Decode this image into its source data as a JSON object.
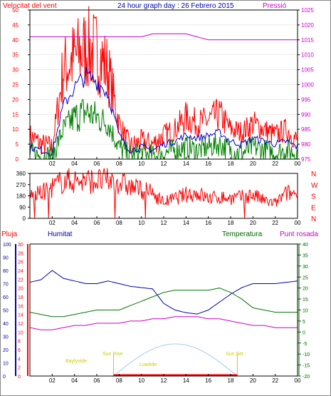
{
  "title": "24 hour graph day : 26 Febrero 2015",
  "colors": {
    "wind": "#ff0000",
    "gust_avg": "#0000cc",
    "wind_green": "#008000",
    "pressure": "#cc00cc",
    "humidity": "#0000aa",
    "temperature": "#006400",
    "dew": "#cc00cc",
    "rain": "#ff0000",
    "sun": "#a8c8f0",
    "sun_labels": "#cccc00"
  },
  "x_ticks": [
    "02",
    "04",
    "06",
    "08",
    "10",
    "12",
    "14",
    "16",
    "18",
    "20",
    "22",
    "00"
  ],
  "panel1": {
    "left_label": "Velocitat del vent",
    "right_label": "Pressió",
    "left_ticks": [
      "50",
      "45",
      "40",
      "35",
      "30",
      "25",
      "20",
      "15",
      "10",
      "5",
      "0"
    ],
    "right_ticks": [
      "1025",
      "1020",
      "1015",
      "1010",
      "1005",
      "1000",
      "995",
      "990",
      "985",
      "980",
      "975"
    ],
    "ylim_left": [
      0,
      50
    ],
    "ylim_right": [
      975,
      1025
    ]
  },
  "panel2": {
    "left_ticks": [
      "360",
      "270",
      "180",
      "90",
      "0"
    ],
    "compass": [
      "N",
      "W",
      "S",
      "E",
      "N"
    ],
    "ylim": [
      0,
      360
    ]
  },
  "panel3": {
    "labels": {
      "rain": "Pluja",
      "humidity": "Humitat",
      "temperature": "Temperatura",
      "dew": "Punt rosada"
    },
    "rain_ticks": [
      "30",
      "28",
      "26",
      "24",
      "22",
      "20",
      "18",
      "16",
      "14",
      "12",
      "10",
      "8",
      "6",
      "4",
      "2",
      "0"
    ],
    "hum_ticks": [
      "100",
      "90",
      "80",
      "70",
      "60",
      "50",
      "40",
      "30",
      "20",
      "10",
      "0"
    ],
    "temp_ticks": [
      "40",
      "35",
      "30",
      "25",
      "20",
      "15",
      "10",
      "5",
      "0",
      "-5",
      "-10",
      "-15",
      "-20"
    ],
    "sun_labels": {
      "twilight1": "Baylyvide",
      "sunrise": "Sun Rise",
      "lowtide": "Lowtide",
      "sunset": "Sun Set"
    }
  },
  "chart_data": [
    {
      "type": "line",
      "title": "24 hour graph day : 26 Febrero 2015",
      "ylabel": "Velocitat del vent",
      "ylabel_right": "Pressió",
      "x": [
        0,
        1,
        2,
        3,
        4,
        5,
        6,
        7,
        8,
        9,
        10,
        11,
        12,
        13,
        14,
        15,
        16,
        17,
        18,
        19,
        20,
        21,
        22,
        23,
        24
      ],
      "ylim": [
        0,
        50
      ],
      "ylim_right": [
        975,
        1025
      ],
      "series": [
        {
          "values": [
            8,
            5,
            4,
            30,
            34,
            37,
            36,
            30,
            12,
            4,
            6,
            5,
            8,
            10,
            14,
            12,
            13,
            15,
            10,
            9,
            12,
            10,
            8,
            10,
            6
          ]
        },
        {
          "values": [
            4,
            3,
            2,
            18,
            24,
            28,
            26,
            22,
            8,
            3,
            4,
            3,
            5,
            6,
            8,
            7,
            8,
            9,
            6,
            5,
            7,
            6,
            5,
            6,
            4
          ]
        },
        {
          "values": [
            2,
            1,
            1,
            10,
            14,
            16,
            14,
            12,
            4,
            1,
            2,
            1,
            2,
            3,
            4,
            3,
            4,
            5,
            3,
            2,
            4,
            3,
            2,
            3,
            2
          ]
        },
        {
          "values": [
            1016,
            1016,
            1016,
            1016,
            1016,
            1016,
            1016,
            1016,
            1016,
            1016,
            1016,
            1017,
            1017,
            1017,
            1017,
            1016,
            1015,
            1015,
            1015,
            1015,
            1015,
            1015,
            1015,
            1015,
            1015
          ]
        }
      ]
    },
    {
      "type": "line",
      "ylim": [
        0,
        360
      ],
      "x": [
        0,
        1,
        2,
        3,
        4,
        5,
        6,
        7,
        8,
        9,
        10,
        11,
        12,
        13,
        14,
        15,
        16,
        17,
        18,
        19,
        20,
        21,
        22,
        23,
        24
      ],
      "series": [
        {
          "values": [
            180,
            200,
            250,
            300,
            300,
            300,
            300,
            300,
            290,
            250,
            230,
            200,
            130,
            160,
            190,
            200,
            160,
            170,
            160,
            170,
            190,
            140,
            120,
            200,
            200
          ]
        }
      ]
    },
    {
      "type": "line",
      "x": [
        0,
        1,
        2,
        3,
        4,
        5,
        6,
        7,
        8,
        9,
        10,
        11,
        12,
        13,
        14,
        15,
        16,
        17,
        18,
        19,
        20,
        21,
        22,
        23,
        24
      ],
      "ylim": [
        0,
        100
      ],
      "ylim_right": [
        -20,
        40
      ],
      "series": [
        {
          "values": [
            71,
            73,
            80,
            74,
            72,
            70,
            70,
            72,
            70,
            68,
            67,
            66,
            55,
            50,
            48,
            47,
            50,
            56,
            62,
            67,
            70,
            70,
            70,
            71,
            72
          ]
        },
        {
          "values": [
            9,
            8,
            7,
            7,
            8,
            9,
            10,
            10,
            10,
            12,
            14,
            16,
            18,
            19,
            19,
            19,
            19,
            20,
            18,
            15,
            11,
            10,
            9,
            9,
            9
          ]
        },
        {
          "values": [
            2,
            1,
            1,
            2,
            3,
            3,
            4,
            4,
            4,
            5,
            5,
            6,
            6,
            7,
            7,
            7,
            6,
            6,
            5,
            4,
            3,
            3,
            2,
            2,
            2
          ]
        }
      ]
    }
  ]
}
